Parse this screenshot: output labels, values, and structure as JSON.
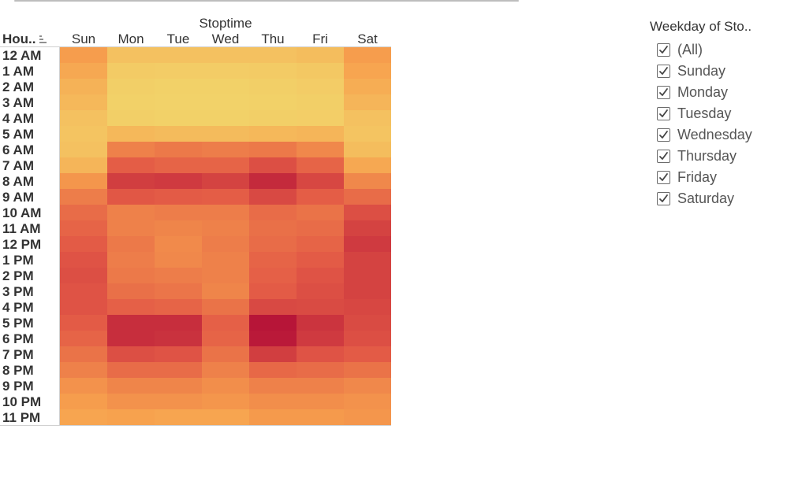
{
  "chart_data": {
    "type": "heatmap",
    "title": "Stoptime",
    "row_header": "Hou..",
    "columns": [
      "Sun",
      "Mon",
      "Tue",
      "Wed",
      "Thu",
      "Fri",
      "Sat"
    ],
    "rows": [
      "12 AM",
      "1 AM",
      "2 AM",
      "3 AM",
      "4 AM",
      "5 AM",
      "6 AM",
      "7 AM",
      "8 AM",
      "9 AM",
      "10 AM",
      "11 AM",
      "12 PM",
      "1 PM",
      "2 PM",
      "3 PM",
      "4 PM",
      "5 PM",
      "6 PM",
      "7 PM",
      "8 PM",
      "9 PM",
      "10 PM",
      "11 PM"
    ],
    "values": [
      [
        0.35,
        0.12,
        0.12,
        0.12,
        0.12,
        0.15,
        0.35
      ],
      [
        0.28,
        0.06,
        0.05,
        0.05,
        0.06,
        0.08,
        0.3
      ],
      [
        0.22,
        0.03,
        0.02,
        0.02,
        0.03,
        0.05,
        0.25
      ],
      [
        0.18,
        0.02,
        0.01,
        0.01,
        0.02,
        0.03,
        0.2
      ],
      [
        0.12,
        0.03,
        0.02,
        0.02,
        0.03,
        0.04,
        0.12
      ],
      [
        0.1,
        0.18,
        0.16,
        0.16,
        0.18,
        0.2,
        0.1
      ],
      [
        0.12,
        0.48,
        0.52,
        0.5,
        0.52,
        0.45,
        0.15
      ],
      [
        0.2,
        0.65,
        0.62,
        0.62,
        0.72,
        0.62,
        0.28
      ],
      [
        0.38,
        0.8,
        0.82,
        0.78,
        0.9,
        0.76,
        0.45
      ],
      [
        0.5,
        0.68,
        0.66,
        0.65,
        0.75,
        0.65,
        0.58
      ],
      [
        0.58,
        0.48,
        0.5,
        0.5,
        0.58,
        0.55,
        0.72
      ],
      [
        0.62,
        0.48,
        0.46,
        0.48,
        0.56,
        0.58,
        0.78
      ],
      [
        0.66,
        0.52,
        0.44,
        0.5,
        0.58,
        0.62,
        0.82
      ],
      [
        0.7,
        0.5,
        0.45,
        0.48,
        0.62,
        0.66,
        0.78
      ],
      [
        0.72,
        0.52,
        0.5,
        0.48,
        0.64,
        0.7,
        0.78
      ],
      [
        0.7,
        0.56,
        0.54,
        0.46,
        0.66,
        0.72,
        0.78
      ],
      [
        0.7,
        0.64,
        0.62,
        0.55,
        0.75,
        0.74,
        0.76
      ],
      [
        0.66,
        0.88,
        0.88,
        0.64,
        1.0,
        0.85,
        0.74
      ],
      [
        0.62,
        0.88,
        0.86,
        0.62,
        0.98,
        0.82,
        0.72
      ],
      [
        0.55,
        0.72,
        0.7,
        0.55,
        0.8,
        0.7,
        0.66
      ],
      [
        0.48,
        0.58,
        0.58,
        0.48,
        0.6,
        0.58,
        0.55
      ],
      [
        0.4,
        0.46,
        0.46,
        0.42,
        0.48,
        0.48,
        0.45
      ],
      [
        0.35,
        0.4,
        0.4,
        0.38,
        0.42,
        0.42,
        0.4
      ],
      [
        0.3,
        0.32,
        0.3,
        0.3,
        0.36,
        0.36,
        0.38
      ]
    ],
    "color_scale": [
      "#f2d46a",
      "#f7a04d",
      "#e35a46",
      "#b71538"
    ],
    "legend": "top-right",
    "grid": false
  },
  "legend": {
    "title": "Weekday of Sto..",
    "items": [
      {
        "label": "(All)",
        "checked": true
      },
      {
        "label": "Sunday",
        "checked": true
      },
      {
        "label": "Monday",
        "checked": true
      },
      {
        "label": "Tuesday",
        "checked": true
      },
      {
        "label": "Wednesday",
        "checked": true
      },
      {
        "label": "Thursday",
        "checked": true
      },
      {
        "label": "Friday",
        "checked": true
      },
      {
        "label": "Saturday",
        "checked": true
      }
    ]
  },
  "icons": {
    "sort": "sort-descending-icon",
    "check": "checkmark-icon"
  }
}
